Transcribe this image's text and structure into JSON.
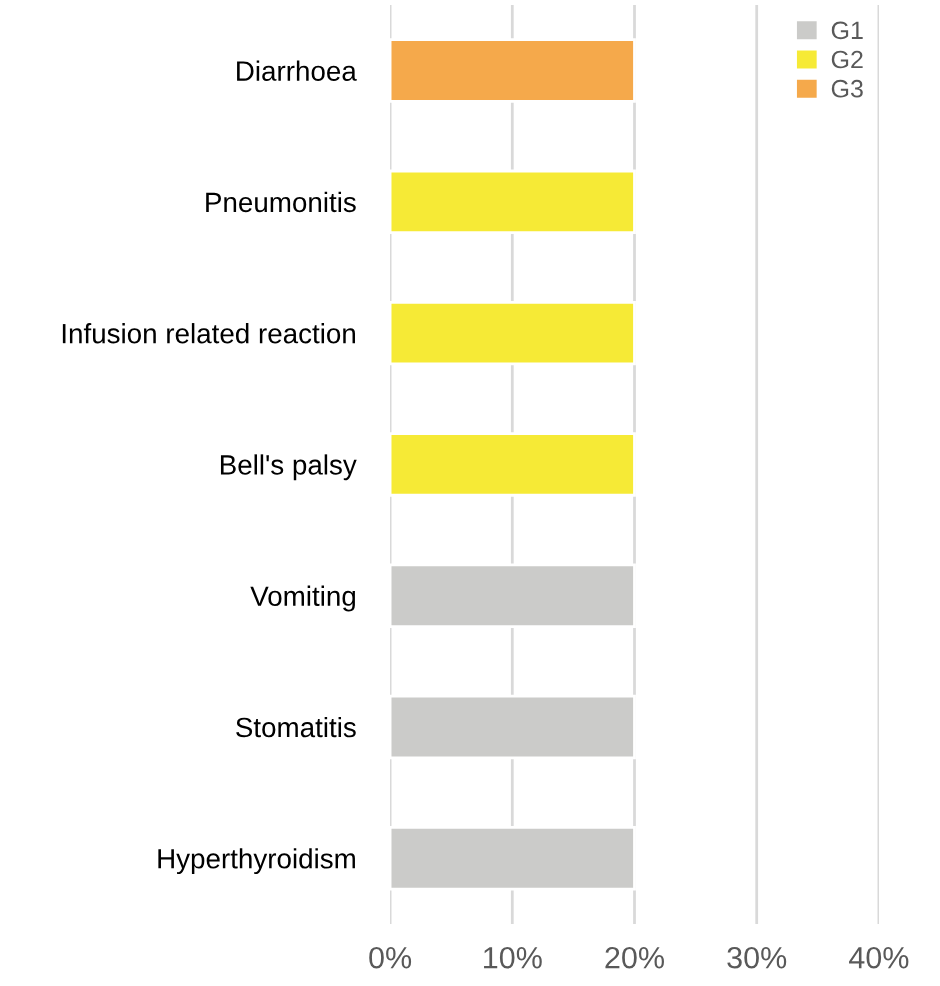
{
  "chart_data": {
    "type": "bar",
    "orientation": "horizontal",
    "categories": [
      "Diarrhoea",
      "Pneumonitis",
      "Infusion related reaction",
      "Bell's palsy",
      "Vomiting",
      "Stomatitis",
      "Hyperthyroidism"
    ],
    "series": [
      {
        "name": "G1",
        "color": "#cbcbc9",
        "values": [
          null,
          null,
          null,
          null,
          20,
          20,
          20
        ]
      },
      {
        "name": "G2",
        "color": "#f6ea36",
        "values": [
          null,
          20,
          20,
          20,
          null,
          null,
          null
        ]
      },
      {
        "name": "G3",
        "color": "#f5a94b",
        "values": [
          20,
          null,
          null,
          null,
          null,
          null,
          null
        ]
      }
    ],
    "xlim": [
      0,
      40
    ],
    "xticks": [
      {
        "value": 0,
        "label": "0%"
      },
      {
        "value": 10,
        "label": "10%"
      },
      {
        "value": 20,
        "label": "20%"
      },
      {
        "value": 30,
        "label": "30%"
      },
      {
        "value": 40,
        "label": "40%"
      }
    ],
    "grid": "x",
    "legend": "top right"
  }
}
